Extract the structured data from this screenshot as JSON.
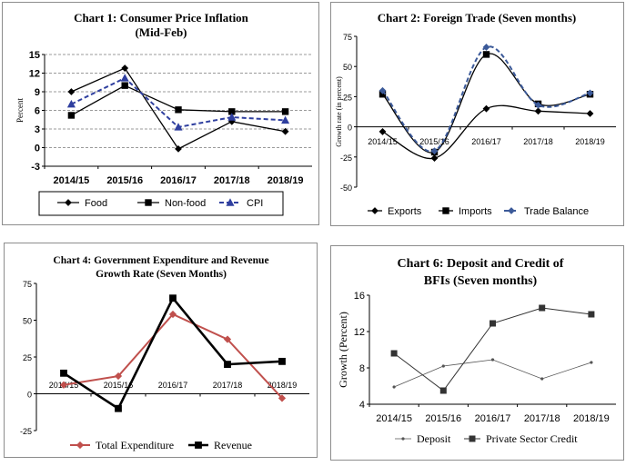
{
  "chart_data": [
    {
      "id": "chart1",
      "type": "line",
      "title_lines": [
        "Chart 1: Consumer Price Inflation",
        "(Mid-Feb)"
      ],
      "ylabel": "Percent",
      "categories": [
        "2014/15",
        "2015/16",
        "2016/17",
        "2017/18",
        "2018/19"
      ],
      "yticks": [
        "15",
        "12",
        "9",
        "6",
        "3",
        "0",
        "-3"
      ],
      "ylim": [
        -3,
        15
      ],
      "grid": true,
      "legend_position": "bottom",
      "series": [
        {
          "name": "Food",
          "values": [
            9.0,
            12.8,
            -0.2,
            4.2,
            2.6
          ],
          "color": "#000000",
          "marker": "diamond",
          "dash": false
        },
        {
          "name": "Non-food",
          "values": [
            5.2,
            10.0,
            6.1,
            5.8,
            5.8
          ],
          "color": "#000000",
          "marker": "square",
          "dash": false
        },
        {
          "name": "CPI",
          "values": [
            7.0,
            11.2,
            3.3,
            4.9,
            4.4
          ],
          "color": "#2f3f9f",
          "marker": "triangle",
          "dash": true
        }
      ]
    },
    {
      "id": "chart2",
      "type": "line",
      "title_lines": [
        "Chart 2: Foreign Trade (Seven months)"
      ],
      "ylabel": "Growth rate (in percent)",
      "categories": [
        "2014/15",
        "2015/16",
        "2016/17",
        "2017/18",
        "2018/19"
      ],
      "yticks": [
        "75",
        "50",
        "25",
        "0",
        "-25",
        "-50"
      ],
      "ylim": [
        -50,
        75
      ],
      "grid": false,
      "legend_position": "bottom",
      "series": [
        {
          "name": "Exports",
          "values": [
            -4,
            -26,
            15,
            13,
            11
          ],
          "color": "#000000",
          "marker": "diamond",
          "dash": false
        },
        {
          "name": "Imports",
          "values": [
            27,
            -21,
            60,
            19,
            27
          ],
          "color": "#000000",
          "marker": "square",
          "dash": false
        },
        {
          "name": "Trade Balance",
          "values": [
            30,
            -20,
            66,
            18,
            28
          ],
          "color": "#3c5a99",
          "marker": "diamond",
          "dash": true
        }
      ]
    },
    {
      "id": "chart4",
      "type": "line",
      "title_lines": [
        "Chart 4: Government Expenditure and Revenue",
        "Growth Rate (Seven Months)"
      ],
      "categories": [
        "2014/15",
        "2015/16",
        "2016/17",
        "2017/18",
        "2018/19"
      ],
      "yticks": [
        "75",
        "50",
        "25",
        "0",
        "-25"
      ],
      "ylim": [
        -25,
        75
      ],
      "grid": false,
      "legend_position": "bottom",
      "series": [
        {
          "name": "Total Expenditure",
          "values": [
            6,
            12,
            54,
            37,
            -3
          ],
          "color": "#c0504d",
          "marker": "diamond",
          "dash": false
        },
        {
          "name": "Revenue",
          "values": [
            14,
            -10,
            65,
            20,
            22
          ],
          "color": "#000000",
          "marker": "square",
          "dash": false
        }
      ]
    },
    {
      "id": "chart6",
      "type": "line",
      "title_lines": [
        "Chart 6:  Deposit and Credit of",
        "BFIs (Seven months)"
      ],
      "ylabel": "Growth (Percent)",
      "categories": [
        "2014/15",
        "2015/16",
        "2016/17",
        "2017/18",
        "2018/19"
      ],
      "yticks": [
        "16",
        "12",
        "8",
        "4"
      ],
      "ylim": [
        4,
        16
      ],
      "grid": false,
      "legend_position": "bottom",
      "series": [
        {
          "name": "Deposit",
          "values": [
            5.9,
            8.2,
            8.9,
            6.8,
            8.6
          ],
          "color": "#555555",
          "marker": "dot",
          "dash": false
        },
        {
          "name": "Private Sector Credit",
          "values": [
            9.6,
            5.5,
            12.9,
            14.6,
            13.9
          ],
          "color": "#333333",
          "marker": "square",
          "dash": false
        }
      ]
    }
  ]
}
